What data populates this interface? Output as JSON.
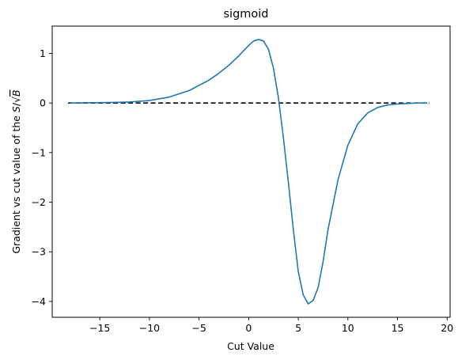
{
  "chart_data": {
    "type": "line",
    "title": "sigmoid",
    "xlabel": "Cut Value",
    "ylabel_prefix": "Gradient vs cut value of the ",
    "ylabel_S": "S",
    "ylabel_B": "B",
    "xlim": [
      -19.8,
      20.3
    ],
    "ylim": [
      -4.32,
      1.55
    ],
    "x_ticks": [
      -15,
      -10,
      -5,
      0,
      5,
      10,
      15,
      20
    ],
    "x_tick_labels": [
      "−15",
      "−10",
      "−5",
      "0",
      "5",
      "10",
      "15",
      "20"
    ],
    "y_ticks": [
      -4,
      -3,
      -2,
      -1,
      0,
      1
    ],
    "y_tick_labels": [
      "−4",
      "−3",
      "−2",
      "−1",
      "0",
      "1"
    ],
    "grid": false,
    "reference_line": {
      "y": 0,
      "style": "dashed",
      "color": "#000000",
      "x_range": [
        -18.2,
        18.2
      ]
    },
    "series": [
      {
        "color": "#1f77b4",
        "x": [
          -18,
          -16,
          -14,
          -12,
          -10,
          -8,
          -6,
          -4,
          -3,
          -2,
          -1,
          0,
          0.5,
          1,
          1.5,
          2,
          2.5,
          3,
          3.5,
          4,
          4.5,
          5,
          5.5,
          6,
          6.5,
          7,
          7.5,
          8,
          9,
          10,
          11,
          12,
          13,
          14,
          15,
          16,
          17,
          18
        ],
        "y": [
          0.0,
          0.005,
          0.01,
          0.02,
          0.05,
          0.12,
          0.25,
          0.46,
          0.6,
          0.76,
          0.95,
          1.16,
          1.25,
          1.28,
          1.25,
          1.08,
          0.7,
          0.1,
          -0.7,
          -1.6,
          -2.55,
          -3.4,
          -3.87,
          -4.05,
          -3.98,
          -3.72,
          -3.2,
          -2.55,
          -1.55,
          -0.85,
          -0.42,
          -0.2,
          -0.09,
          -0.04,
          -0.02,
          -0.01,
          0.0,
          0.0
        ]
      }
    ]
  }
}
